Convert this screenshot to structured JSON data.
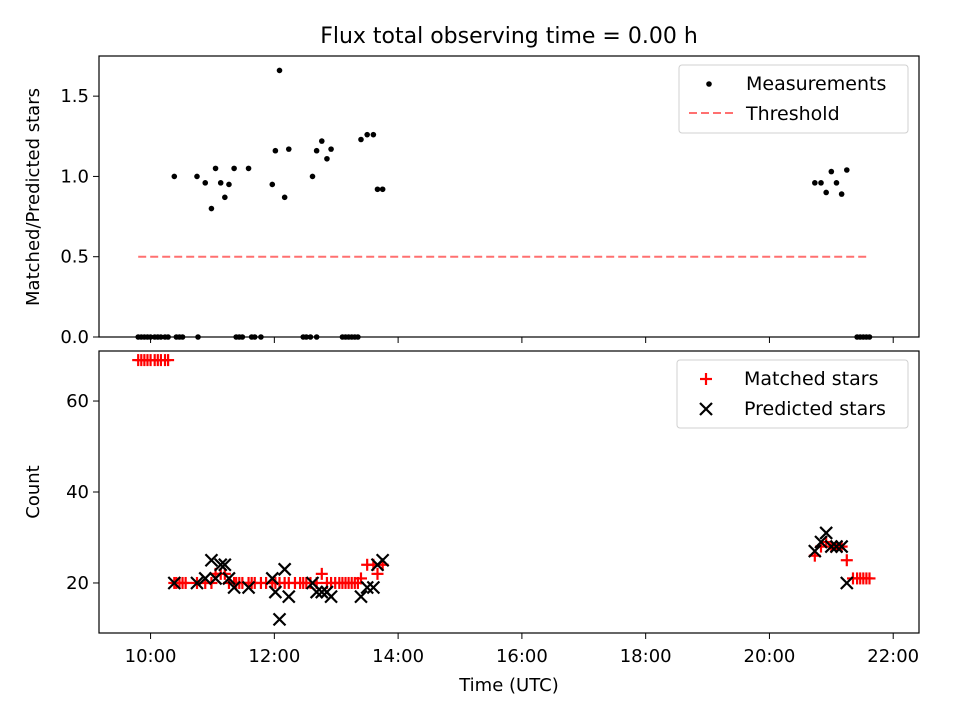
{
  "title": "Flux total observing time = 0.00 h",
  "xlabel": "Time (UTC)",
  "colors": {
    "measurement": "#000000",
    "threshold": "#ff7070",
    "matched": "#ff0000",
    "predicted": "#000000"
  },
  "chart_data": [
    {
      "type": "scatter",
      "ylabel": "Matched/Predicted stars",
      "xlim": [
        "09:10",
        "22:25"
      ],
      "ylim": [
        0,
        1.75
      ],
      "yticks": [
        "0.0",
        "0.5",
        "1.0",
        "1.5"
      ],
      "legend_position": "top-right",
      "legend": [
        "Measurements",
        "Threshold"
      ],
      "series": [
        {
          "name": "Measurements",
          "kind": "points",
          "points": [
            [
              "09:48",
              0
            ],
            [
              "09:51",
              0
            ],
            [
              "09:54",
              0
            ],
            [
              "09:57",
              0
            ],
            [
              "10:00",
              0
            ],
            [
              "10:04",
              0
            ],
            [
              "10:07",
              0
            ],
            [
              "10:10",
              0
            ],
            [
              "10:14",
              0
            ],
            [
              "10:17",
              0
            ],
            [
              "10:25",
              0
            ],
            [
              "10:28",
              0
            ],
            [
              "10:31",
              0
            ],
            [
              "10:46",
              0
            ],
            [
              "11:23",
              0
            ],
            [
              "11:26",
              0
            ],
            [
              "11:29",
              0
            ],
            [
              "11:38",
              0
            ],
            [
              "11:41",
              0
            ],
            [
              "11:47",
              0
            ],
            [
              "12:28",
              0
            ],
            [
              "12:31",
              0
            ],
            [
              "12:35",
              0
            ],
            [
              "12:41",
              0
            ],
            [
              "13:06",
              0
            ],
            [
              "13:09",
              0
            ],
            [
              "13:12",
              0
            ],
            [
              "13:15",
              0
            ],
            [
              "13:18",
              0
            ],
            [
              "13:21",
              0
            ],
            [
              "21:25",
              0
            ],
            [
              "21:28",
              0
            ],
            [
              "21:31",
              0
            ],
            [
              "21:34",
              0
            ],
            [
              "21:37",
              0
            ],
            [
              "10:23",
              1.0
            ],
            [
              "10:45",
              1.0
            ],
            [
              "10:53",
              0.96
            ],
            [
              "10:59",
              0.8
            ],
            [
              "11:03",
              1.05
            ],
            [
              "11:08",
              0.96
            ],
            [
              "11:12",
              0.87
            ],
            [
              "11:16",
              0.95
            ],
            [
              "11:21",
              1.05
            ],
            [
              "11:35",
              1.05
            ],
            [
              "11:58",
              0.95
            ],
            [
              "12:01",
              1.16
            ],
            [
              "12:05",
              1.66
            ],
            [
              "12:10",
              0.87
            ],
            [
              "12:14",
              1.17
            ],
            [
              "12:37",
              1.0
            ],
            [
              "12:41",
              1.16
            ],
            [
              "12:46",
              1.22
            ],
            [
              "12:51",
              1.11
            ],
            [
              "12:55",
              1.17
            ],
            [
              "13:24",
              1.23
            ],
            [
              "13:30",
              1.26
            ],
            [
              "13:36",
              1.26
            ],
            [
              "13:40",
              0.92
            ],
            [
              "13:45",
              0.92
            ],
            [
              "20:44",
              0.96
            ],
            [
              "20:50",
              0.96
            ],
            [
              "20:55",
              0.9
            ],
            [
              "21:00",
              1.03
            ],
            [
              "21:05",
              0.96
            ],
            [
              "21:10",
              0.89
            ],
            [
              "21:15",
              1.04
            ]
          ]
        },
        {
          "name": "Threshold",
          "kind": "line",
          "points": [
            [
              "09:48",
              0.5
            ],
            [
              "21:37",
              0.5
            ]
          ]
        }
      ]
    },
    {
      "type": "scatter",
      "ylabel": "Count",
      "xlim": [
        "09:10",
        "22:25"
      ],
      "ylim": [
        9,
        71
      ],
      "yticks": [
        "20",
        "40",
        "60"
      ],
      "xticks": [
        "10:00",
        "12:00",
        "14:00",
        "16:00",
        "18:00",
        "20:00",
        "22:00"
      ],
      "legend_position": "top-right",
      "legend": [
        "Matched stars",
        "Predicted stars"
      ],
      "series": [
        {
          "name": "Matched stars",
          "marker": "plus",
          "points": [
            [
              "09:48",
              69
            ],
            [
              "09:51",
              69
            ],
            [
              "09:54",
              69
            ],
            [
              "09:57",
              69
            ],
            [
              "10:00",
              69
            ],
            [
              "10:04",
              69
            ],
            [
              "10:07",
              69
            ],
            [
              "10:10",
              69
            ],
            [
              "10:14",
              69
            ],
            [
              "10:17",
              69
            ],
            [
              "10:23",
              20
            ],
            [
              "10:25",
              20
            ],
            [
              "10:28",
              20
            ],
            [
              "10:31",
              20
            ],
            [
              "10:34",
              20
            ],
            [
              "10:45",
              20
            ],
            [
              "10:53",
              20
            ],
            [
              "10:59",
              20
            ],
            [
              "11:03",
              22
            ],
            [
              "11:08",
              22
            ],
            [
              "11:12",
              22
            ],
            [
              "11:16",
              20
            ],
            [
              "11:21",
              20
            ],
            [
              "11:23",
              20
            ],
            [
              "11:26",
              20
            ],
            [
              "11:29",
              20
            ],
            [
              "11:35",
              20
            ],
            [
              "11:38",
              20
            ],
            [
              "11:41",
              20
            ],
            [
              "11:47",
              20
            ],
            [
              "11:52",
              20
            ],
            [
              "11:58",
              20
            ],
            [
              "12:01",
              20
            ],
            [
              "12:05",
              20
            ],
            [
              "12:10",
              20
            ],
            [
              "12:14",
              20
            ],
            [
              "12:20",
              20
            ],
            [
              "12:25",
              20
            ],
            [
              "12:28",
              20
            ],
            [
              "12:31",
              20
            ],
            [
              "12:35",
              20
            ],
            [
              "12:41",
              20
            ],
            [
              "12:46",
              22
            ],
            [
              "12:51",
              20
            ],
            [
              "12:55",
              20
            ],
            [
              "12:59",
              20
            ],
            [
              "13:03",
              20
            ],
            [
              "13:06",
              20
            ],
            [
              "13:09",
              20
            ],
            [
              "13:12",
              20
            ],
            [
              "13:15",
              20
            ],
            [
              "13:18",
              20
            ],
            [
              "13:21",
              20
            ],
            [
              "13:24",
              21
            ],
            [
              "13:30",
              24
            ],
            [
              "13:36",
              24
            ],
            [
              "13:40",
              22
            ],
            [
              "13:45",
              24
            ],
            [
              "20:44",
              26
            ],
            [
              "20:50",
              28
            ],
            [
              "20:55",
              29
            ],
            [
              "21:00",
              28
            ],
            [
              "21:05",
              28
            ],
            [
              "21:10",
              28
            ],
            [
              "21:15",
              25
            ],
            [
              "21:21",
              21
            ],
            [
              "21:25",
              21
            ],
            [
              "21:28",
              21
            ],
            [
              "21:31",
              21
            ],
            [
              "21:34",
              21
            ],
            [
              "21:37",
              21
            ]
          ]
        },
        {
          "name": "Predicted stars",
          "marker": "x",
          "points": [
            [
              "10:23",
              20
            ],
            [
              "10:45",
              20
            ],
            [
              "10:53",
              21
            ],
            [
              "10:59",
              25
            ],
            [
              "11:03",
              21
            ],
            [
              "11:08",
              24
            ],
            [
              "11:12",
              24
            ],
            [
              "11:16",
              21
            ],
            [
              "11:21",
              19
            ],
            [
              "11:35",
              19
            ],
            [
              "11:58",
              21
            ],
            [
              "12:01",
              18
            ],
            [
              "12:05",
              12
            ],
            [
              "12:10",
              23
            ],
            [
              "12:14",
              17
            ],
            [
              "12:37",
              20
            ],
            [
              "12:41",
              18
            ],
            [
              "12:46",
              18
            ],
            [
              "12:51",
              18
            ],
            [
              "12:55",
              17
            ],
            [
              "13:24",
              17
            ],
            [
              "13:30",
              19
            ],
            [
              "13:36",
              19
            ],
            [
              "13:40",
              24
            ],
            [
              "13:45",
              25
            ],
            [
              "20:44",
              27
            ],
            [
              "20:50",
              29
            ],
            [
              "20:55",
              31
            ],
            [
              "21:00",
              28
            ],
            [
              "21:05",
              28
            ],
            [
              "21:10",
              28
            ],
            [
              "21:15",
              20
            ]
          ]
        }
      ]
    }
  ]
}
